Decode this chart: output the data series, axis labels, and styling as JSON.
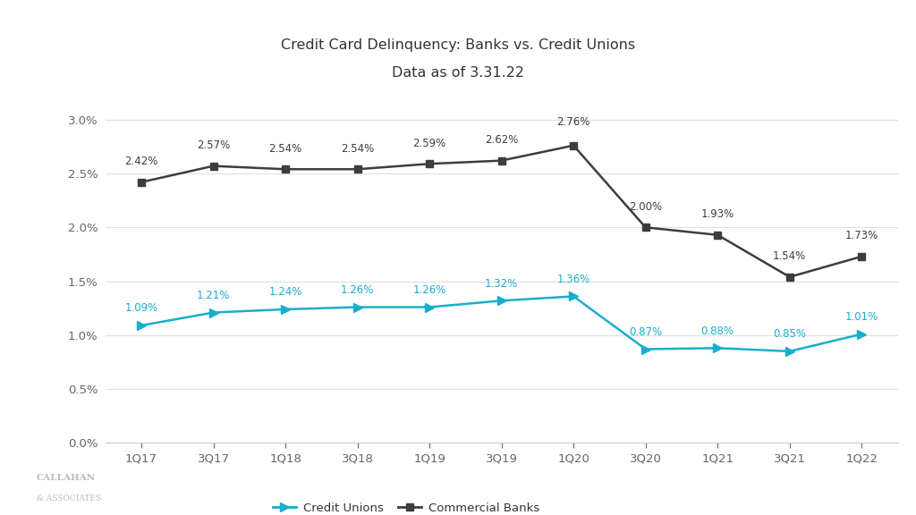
{
  "title_line1": "Credit Card Delinquency: Banks vs. Credit Unions",
  "title_line2": "Data as of 3.31.22",
  "categories": [
    "1Q17",
    "3Q17",
    "1Q18",
    "3Q18",
    "1Q19",
    "3Q19",
    "1Q20",
    "3Q20",
    "1Q21",
    "3Q21",
    "1Q22"
  ],
  "credit_unions": [
    1.09,
    1.21,
    1.24,
    1.26,
    1.26,
    1.32,
    1.36,
    0.87,
    0.88,
    0.85,
    1.01
  ],
  "commercial_banks": [
    2.42,
    2.57,
    2.54,
    2.54,
    2.59,
    2.62,
    2.76,
    2.0,
    1.93,
    1.54,
    1.73
  ],
  "cu_color": "#1AADCE",
  "bank_color": "#3D3D3D",
  "background_color": "#FFFFFF",
  "ylim": [
    0.0,
    3.25
  ],
  "yticks": [
    0.0,
    0.5,
    1.0,
    1.5,
    2.0,
    2.5,
    3.0
  ],
  "legend_cu": "Credit Unions",
  "legend_bank": "Commercial Banks",
  "teal_rect_color": "#1AADCE",
  "callahan_text": "CALLAHAN",
  "associates_text": "& ASSOCIATES"
}
